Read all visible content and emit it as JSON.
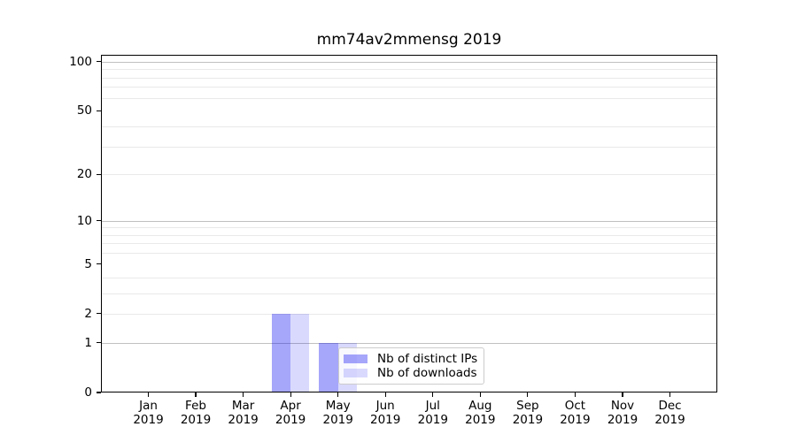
{
  "chart_data": {
    "type": "bar",
    "title": "mm74av2mmensg 2019",
    "x_ticks": [
      {
        "month": "Jan",
        "year": "2019"
      },
      {
        "month": "Feb",
        "year": "2019"
      },
      {
        "month": "Mar",
        "year": "2019"
      },
      {
        "month": "Apr",
        "year": "2019"
      },
      {
        "month": "May",
        "year": "2019"
      },
      {
        "month": "Jun",
        "year": "2019"
      },
      {
        "month": "Jul",
        "year": "2019"
      },
      {
        "month": "Aug",
        "year": "2019"
      },
      {
        "month": "Sep",
        "year": "2019"
      },
      {
        "month": "Oct",
        "year": "2019"
      },
      {
        "month": "Nov",
        "year": "2019"
      },
      {
        "month": "Dec",
        "year": "2019"
      }
    ],
    "series": [
      {
        "name": "Nb of distinct IPs",
        "values": [
          0,
          0,
          0,
          2,
          1,
          0,
          0,
          0,
          0,
          0,
          0,
          0
        ],
        "color": "rgba(0, 0, 240, 0.35)",
        "color_on_white": "#a9a9f9"
      },
      {
        "name": "Nb of downloads",
        "values": [
          0,
          0,
          0,
          2,
          1,
          0,
          0,
          0,
          0,
          0,
          0,
          0
        ],
        "color": "rgba(0, 0, 240, 0.15)",
        "color_on_white": "#d9d9fa"
      }
    ],
    "y_scale": "log10(value+1)",
    "y_ticks": [
      0,
      1,
      2,
      5,
      10,
      20,
      50,
      100
    ],
    "y_grid_major": [
      1,
      10,
      100
    ],
    "y_grid_minor": [
      2,
      3,
      4,
      6,
      7,
      8,
      9,
      20,
      30,
      40,
      60,
      70,
      80,
      90
    ],
    "ylim": [
      0,
      110
    ],
    "grid": true,
    "legend_position": "lower right inside plot",
    "colors": {
      "spine": "#000000",
      "grid_major": "#c0c0c0",
      "grid_minor": "#e9e9e9",
      "legend_border": "#cccccc"
    }
  }
}
